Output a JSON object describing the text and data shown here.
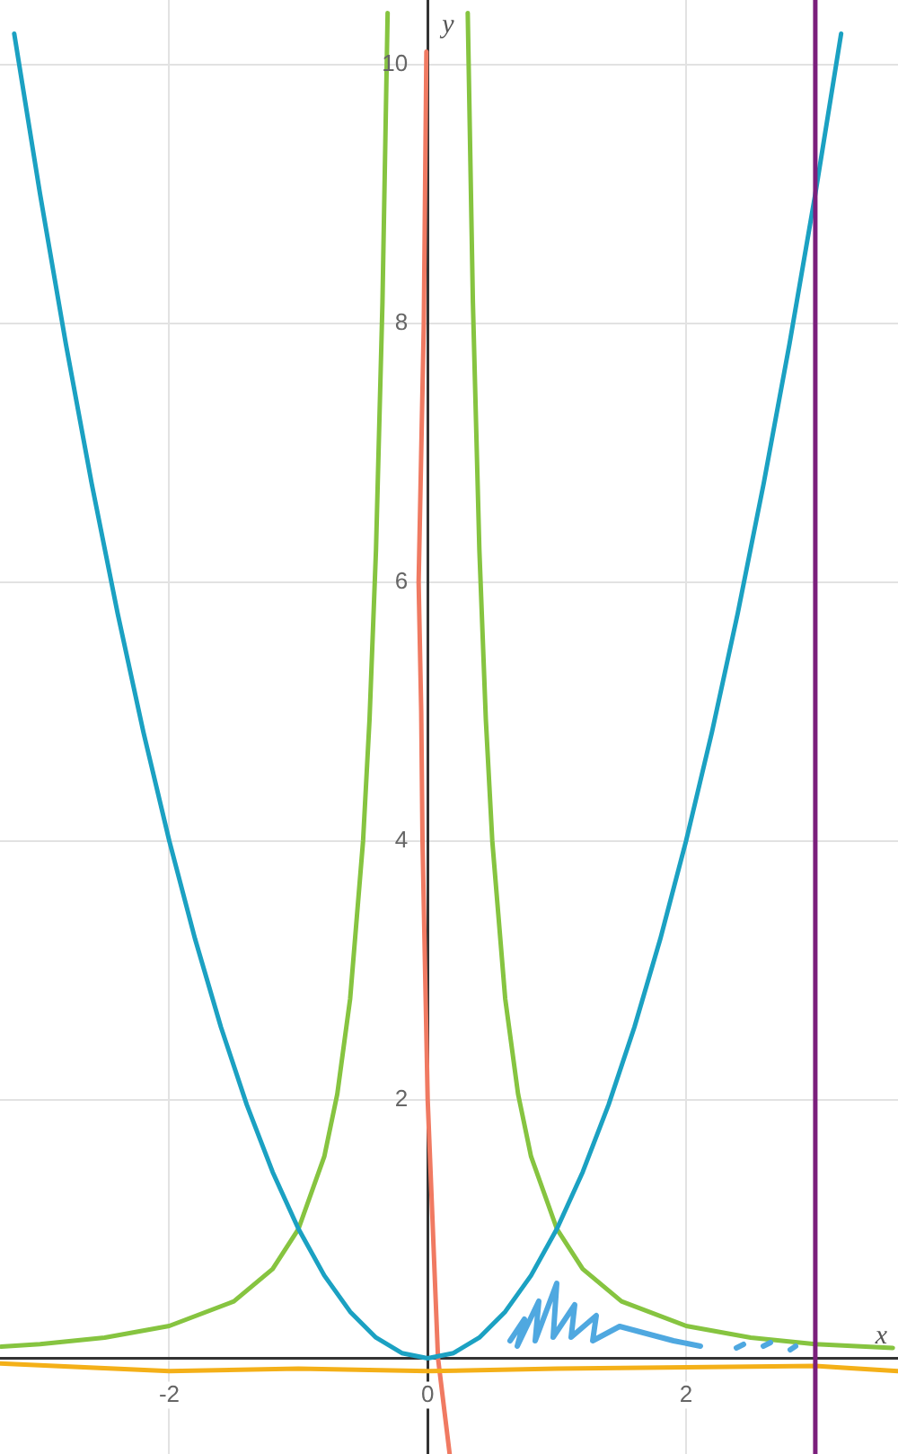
{
  "chart_data": {
    "type": "line",
    "xlabel": "x",
    "ylabel": "y",
    "xlim": [
      -3.31,
      3.64
    ],
    "ylim": [
      -0.74,
      10.5
    ],
    "xticks": [
      -2,
      0,
      2
    ],
    "yticks": [
      2,
      4,
      6,
      8,
      10
    ],
    "grid": true,
    "legend": false,
    "marker": "none",
    "line_style": "solid",
    "ref_lines": [
      {
        "axis": "x",
        "value": 3,
        "color": "#7b1f7c"
      }
    ],
    "series": [
      {
        "color": "#1ba1c2",
        "x": [
          -3.2,
          -3,
          -2.8,
          -2.6,
          -2.4,
          -2.2,
          -2,
          -1.8,
          -1.6,
          -1.4,
          -1.2,
          -1,
          -0.8,
          -0.6,
          -0.4,
          -0.2,
          0,
          0.2,
          0.4,
          0.6,
          0.8,
          1,
          1.2,
          1.4,
          1.6,
          1.8,
          2,
          2.2,
          2.4,
          2.6,
          2.8,
          3,
          3.2
        ],
        "values": [
          10.24,
          9,
          7.84,
          6.76,
          5.76,
          4.84,
          4,
          3.24,
          2.56,
          1.96,
          1.44,
          1,
          0.64,
          0.36,
          0.16,
          0.04,
          0,
          0.04,
          0.16,
          0.36,
          0.64,
          1,
          1.44,
          1.96,
          2.56,
          3.24,
          4,
          4.84,
          5.76,
          6.76,
          7.84,
          9,
          10.24
        ]
      },
      {
        "color": "#86c440",
        "x": [
          -3.3,
          -3,
          -2.5,
          -2,
          -1.5,
          -1.2,
          -1,
          -0.8,
          -0.7,
          -0.6,
          -0.5,
          -0.45,
          -0.4,
          -0.35,
          -0.31,
          0,
          0.31,
          0.35,
          0.4,
          0.45,
          0.5,
          0.6,
          0.7,
          0.8,
          1,
          1.2,
          1.5,
          2,
          2.5,
          3,
          3.6
        ],
        "values": [
          0.09,
          0.11,
          0.16,
          0.25,
          0.44,
          0.69,
          1,
          1.56,
          2.04,
          2.78,
          4,
          4.94,
          6.25,
          8.16,
          10.4,
          null,
          10.4,
          8.16,
          6.25,
          4.94,
          4,
          2.78,
          2.04,
          1.56,
          1,
          0.69,
          0.44,
          0.25,
          0.16,
          0.11,
          0.08
        ]
      },
      {
        "color": "#f4b018",
        "x": [
          -3.31,
          -2,
          -1,
          0,
          1,
          2,
          3,
          3.64
        ],
        "values": [
          -0.04,
          -0.1,
          -0.08,
          -0.1,
          -0.08,
          -0.07,
          -0.06,
          -0.1
        ]
      },
      {
        "color": "#f07a62",
        "x": [
          -0.01,
          -0.03,
          -0.07,
          -0.05,
          -0.04,
          0,
          0.08,
          0.17
        ],
        "values": [
          10.1,
          8,
          6,
          5,
          4,
          2,
          0,
          -0.74
        ]
      }
    ]
  }
}
